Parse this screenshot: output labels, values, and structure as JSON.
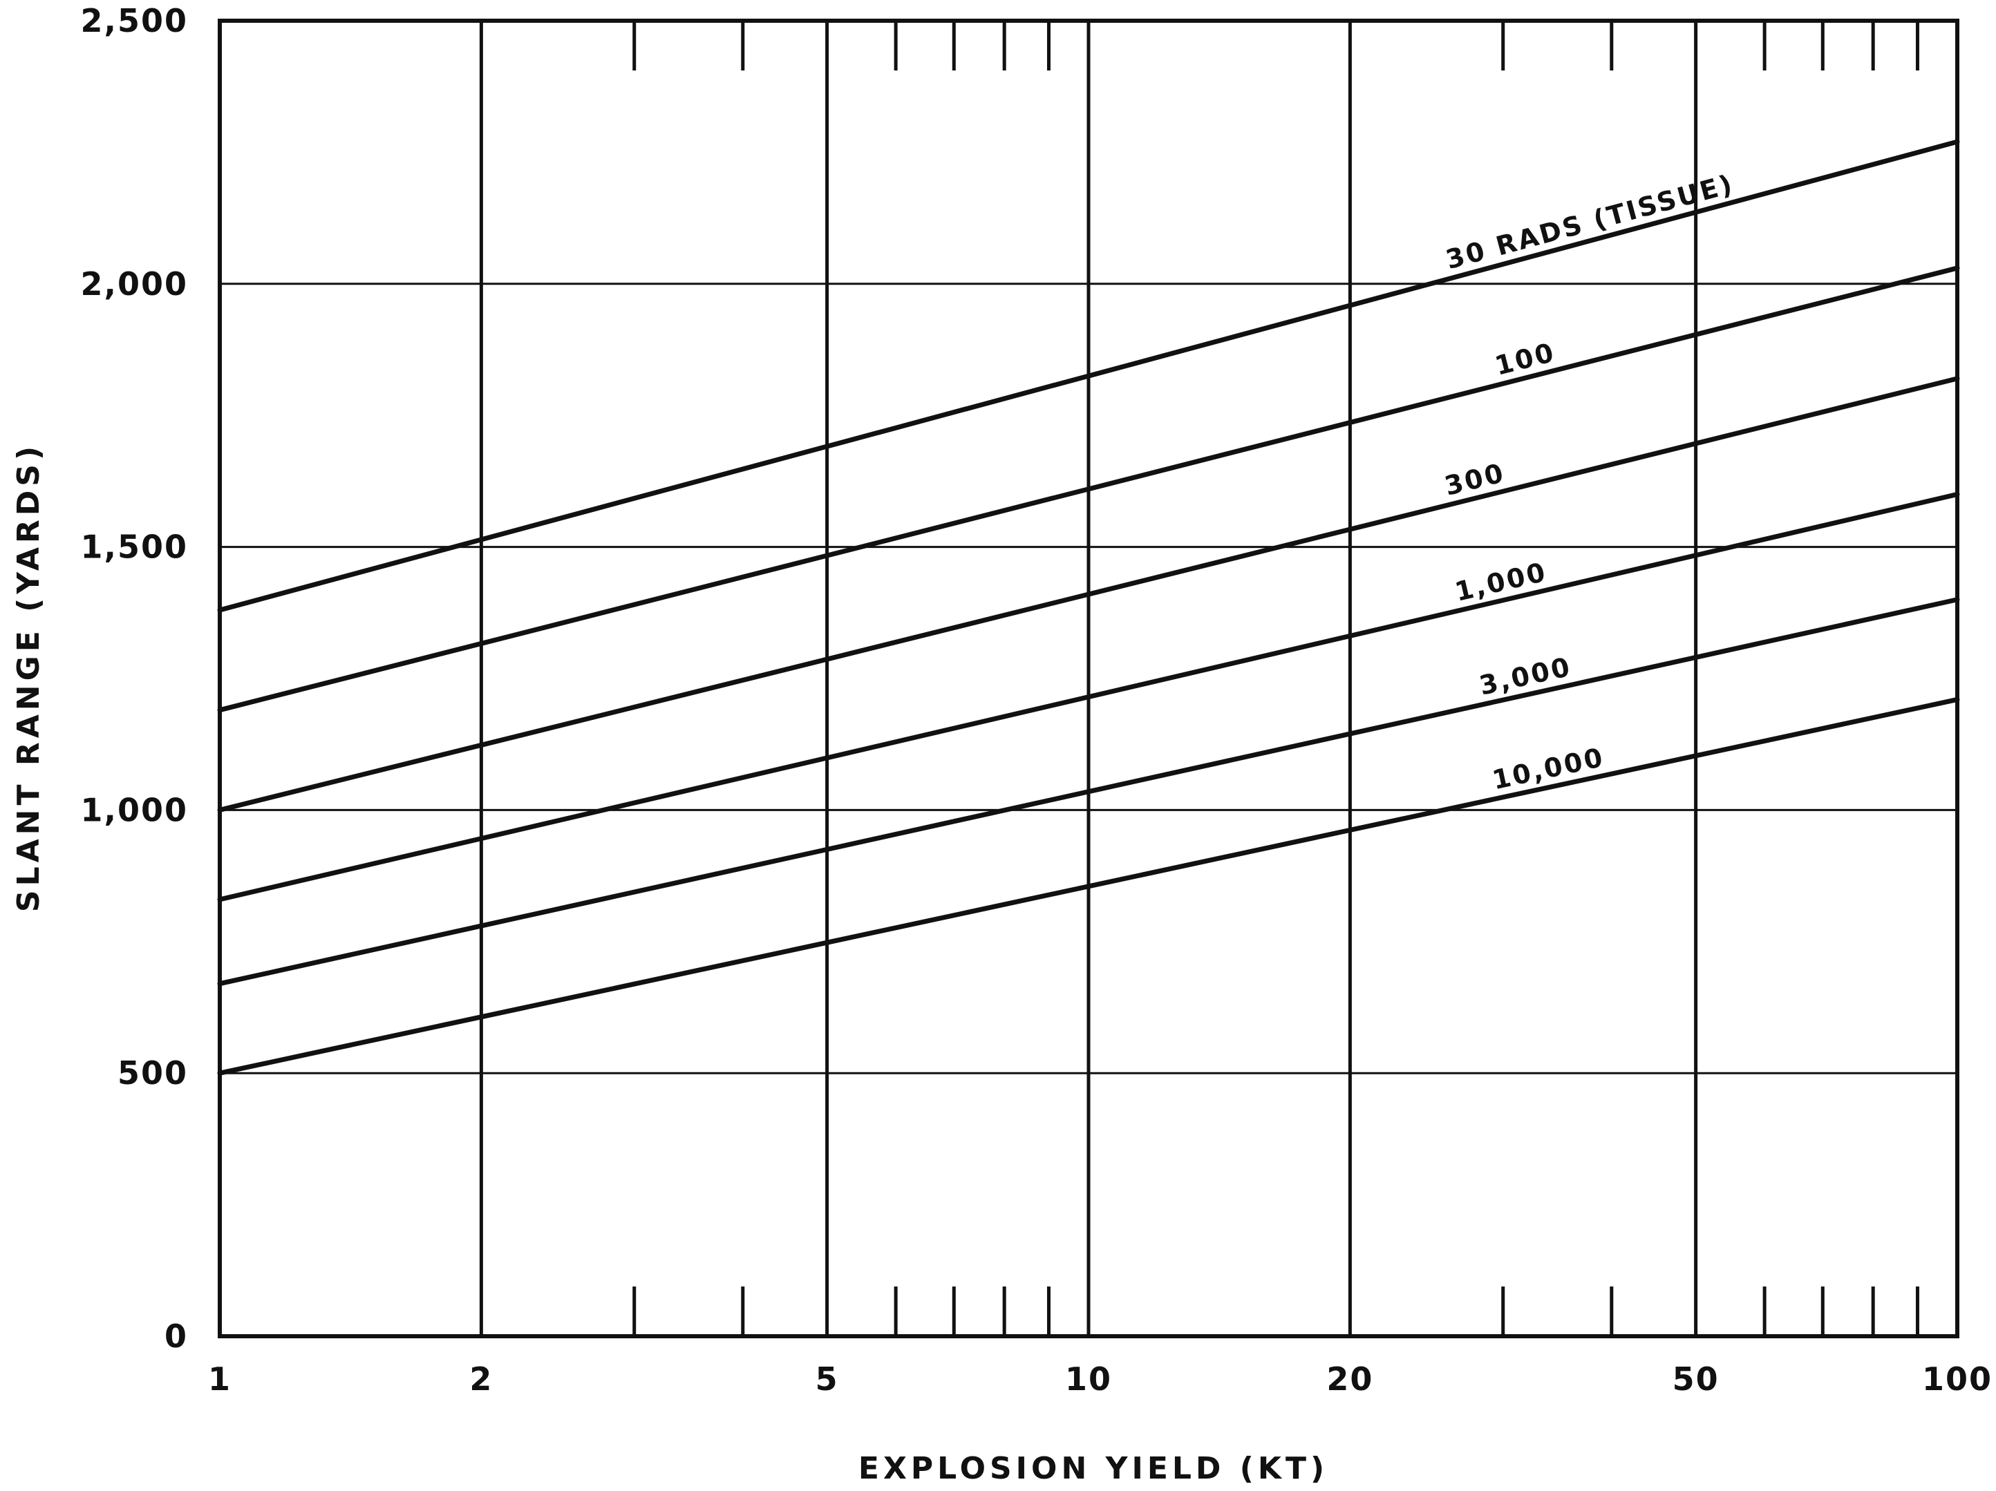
{
  "chart_data": {
    "type": "line",
    "title": "",
    "xlabel": "EXPLOSION YIELD (KT)",
    "ylabel": "SLANT RANGE (YARDS)",
    "x_scale": "log",
    "xlim": [
      1,
      100
    ],
    "ylim": [
      0,
      2500
    ],
    "x_ticks": [
      {
        "value": 1,
        "label": "1"
      },
      {
        "value": 2,
        "label": "2"
      },
      {
        "value": 5,
        "label": "5"
      },
      {
        "value": 10,
        "label": "10"
      },
      {
        "value": 20,
        "label": "20"
      },
      {
        "value": 50,
        "label": "50"
      },
      {
        "value": 100,
        "label": "100"
      }
    ],
    "x_minor_ticks": [
      3,
      4,
      6,
      7,
      8,
      9,
      30,
      40,
      60,
      70,
      80,
      90
    ],
    "y_ticks": [
      {
        "value": 0,
        "label": "0"
      },
      {
        "value": 500,
        "label": "500"
      },
      {
        "value": 1000,
        "label": "1,000"
      },
      {
        "value": 1500,
        "label": "1,500"
      },
      {
        "value": 2000,
        "label": "2,000"
      },
      {
        "value": 2500,
        "label": "2,500"
      }
    ],
    "grid": true,
    "series": [
      {
        "name": "30 RADS (TISSUE)",
        "x": [
          1,
          100
        ],
        "y": [
          1380,
          2270
        ]
      },
      {
        "name": "100",
        "x": [
          1,
          100
        ],
        "y": [
          1190,
          2030
        ]
      },
      {
        "name": "300",
        "x": [
          1,
          100
        ],
        "y": [
          1000,
          1820
        ]
      },
      {
        "name": "1,000",
        "x": [
          1,
          100
        ],
        "y": [
          830,
          1600
        ]
      },
      {
        "name": "3,000",
        "x": [
          1,
          100
        ],
        "y": [
          670,
          1400
        ]
      },
      {
        "name": "10,000",
        "x": [
          1,
          100
        ],
        "y": [
          500,
          1210
        ]
      }
    ],
    "series_label_at_x": [
      38,
      32,
      28,
      30,
      32,
      34
    ]
  }
}
